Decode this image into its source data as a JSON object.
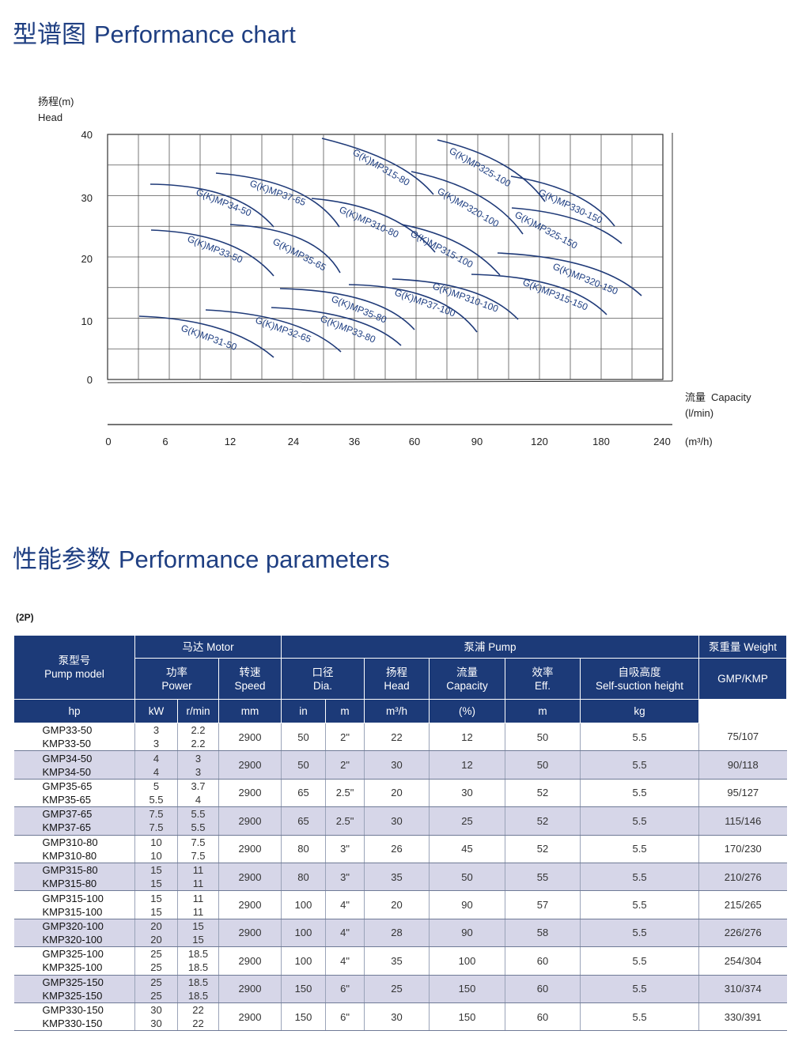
{
  "titles": {
    "chart_cn": "型谱图",
    "chart_en": "Performance chart",
    "params_cn": "性能参数",
    "params_en": "Performance parameters",
    "pole": "(2P)"
  },
  "chart_data": {
    "type": "line",
    "ylabel_cn": "扬程(m)",
    "ylabel_en": "Head",
    "xlabel_cn": "流量",
    "xlabel_en": "Capacity",
    "xunit_lmin": "(l/min)",
    "xunit_m3h": "(m³/h)",
    "ylim": [
      0,
      40
    ],
    "y_ticks": [
      "0",
      "10",
      "20",
      "30",
      "40"
    ],
    "x_ticks": [
      "0",
      "6",
      "12",
      "24",
      "36",
      "60",
      "90",
      "120",
      "180",
      "240"
    ],
    "series": [
      {
        "name": "G(K)MP31-50"
      },
      {
        "name": "G(K)MP32-65"
      },
      {
        "name": "G(K)MP33-50"
      },
      {
        "name": "G(K)MP33-80"
      },
      {
        "name": "G(K)MP34-50"
      },
      {
        "name": "G(K)MP35-65"
      },
      {
        "name": "G(K)MP35-80"
      },
      {
        "name": "G(K)MP37-65"
      },
      {
        "name": "G(K)MP37-100"
      },
      {
        "name": "G(K)MP310-80"
      },
      {
        "name": "G(K)MP310-100"
      },
      {
        "name": "G(K)MP315-80"
      },
      {
        "name": "G(K)MP315-100"
      },
      {
        "name": "G(K)MP315-150"
      },
      {
        "name": "G(K)MP320-100"
      },
      {
        "name": "G(K)MP320-150"
      },
      {
        "name": "G(K)MP325-100"
      },
      {
        "name": "G(K)MP325-150"
      },
      {
        "name": "G(K)MP330-150"
      }
    ]
  },
  "table": {
    "group_motor": "马达 Motor",
    "group_pump": "泵浦 Pump",
    "group_weight": "泵重量 Weight",
    "col_model_cn": "泵型号",
    "col_model_en": "Pump model",
    "col_power_cn": "功率",
    "col_power_en": "Power",
    "col_speed_cn": "转速",
    "col_speed_en": "Speed",
    "col_dia_cn": "口径",
    "col_dia_en": "Dia.",
    "col_head_cn": "扬程",
    "col_head_en": "Head",
    "col_cap_cn": "流量",
    "col_cap_en": "Capacity",
    "col_eff_cn": "效率",
    "col_eff_en": "Eff.",
    "col_suction_cn": "自吸高度",
    "col_suction_en": "Self-suction height",
    "col_weight_sub": "GMP/KMP",
    "unit_hp": "hp",
    "unit_kw": "kW",
    "unit_speed": "r/min",
    "unit_mm": "mm",
    "unit_in": "in",
    "unit_head": "m",
    "unit_cap": "m³/h",
    "unit_eff": "(%)",
    "unit_suction": "m",
    "unit_weight": "kg",
    "rows": [
      {
        "gmp": "GMP33-50",
        "kmp": "KMP33-50",
        "hp1": "3",
        "hp2": "3",
        "kw1": "2.2",
        "kw2": "2.2",
        "speed": "2900",
        "mm": "50",
        "in": "2\"",
        "head": "22",
        "cap": "12",
        "eff": "50",
        "suction": "5.5",
        "weight": "75/107"
      },
      {
        "gmp": "GMP34-50",
        "kmp": "KMP34-50",
        "hp1": "4",
        "hp2": "4",
        "kw1": "3",
        "kw2": "3",
        "speed": "2900",
        "mm": "50",
        "in": "2\"",
        "head": "30",
        "cap": "12",
        "eff": "50",
        "suction": "5.5",
        "weight": "90/118"
      },
      {
        "gmp": "GMP35-65",
        "kmp": "KMP35-65",
        "hp1": "5",
        "hp2": "5.5",
        "kw1": "3.7",
        "kw2": "4",
        "speed": "2900",
        "mm": "65",
        "in": "2.5\"",
        "head": "20",
        "cap": "30",
        "eff": "52",
        "suction": "5.5",
        "weight": "95/127"
      },
      {
        "gmp": "GMP37-65",
        "kmp": "KMP37-65",
        "hp1": "7.5",
        "hp2": "7.5",
        "kw1": "5.5",
        "kw2": "5.5",
        "speed": "2900",
        "mm": "65",
        "in": "2.5\"",
        "head": "30",
        "cap": "25",
        "eff": "52",
        "suction": "5.5",
        "weight": "115/146"
      },
      {
        "gmp": "GMP310-80",
        "kmp": "KMP310-80",
        "hp1": "10",
        "hp2": "10",
        "kw1": "7.5",
        "kw2": "7.5",
        "speed": "2900",
        "mm": "80",
        "in": "3\"",
        "head": "26",
        "cap": "45",
        "eff": "52",
        "suction": "5.5",
        "weight": "170/230"
      },
      {
        "gmp": "GMP315-80",
        "kmp": "KMP315-80",
        "hp1": "15",
        "hp2": "15",
        "kw1": "11",
        "kw2": "11",
        "speed": "2900",
        "mm": "80",
        "in": "3\"",
        "head": "35",
        "cap": "50",
        "eff": "55",
        "suction": "5.5",
        "weight": "210/276"
      },
      {
        "gmp": "GMP315-100",
        "kmp": "KMP315-100",
        "hp1": "15",
        "hp2": "15",
        "kw1": "11",
        "kw2": "11",
        "speed": "2900",
        "mm": "100",
        "in": "4\"",
        "head": "20",
        "cap": "90",
        "eff": "57",
        "suction": "5.5",
        "weight": "215/265"
      },
      {
        "gmp": "GMP320-100",
        "kmp": "KMP320-100",
        "hp1": "20",
        "hp2": "20",
        "kw1": "15",
        "kw2": "15",
        "speed": "2900",
        "mm": "100",
        "in": "4\"",
        "head": "28",
        "cap": "90",
        "eff": "58",
        "suction": "5.5",
        "weight": "226/276"
      },
      {
        "gmp": "GMP325-100",
        "kmp": "KMP325-100",
        "hp1": "25",
        "hp2": "25",
        "kw1": "18.5",
        "kw2": "18.5",
        "speed": "2900",
        "mm": "100",
        "in": "4\"",
        "head": "35",
        "cap": "100",
        "eff": "60",
        "suction": "5.5",
        "weight": "254/304"
      },
      {
        "gmp": "GMP325-150",
        "kmp": "KMP325-150",
        "hp1": "25",
        "hp2": "25",
        "kw1": "18.5",
        "kw2": "18.5",
        "speed": "2900",
        "mm": "150",
        "in": "6\"",
        "head": "25",
        "cap": "150",
        "eff": "60",
        "suction": "5.5",
        "weight": "310/374"
      },
      {
        "gmp": "GMP330-150",
        "kmp": "KMP330-150",
        "hp1": "30",
        "hp2": "30",
        "kw1": "22",
        "kw2": "22",
        "speed": "2900",
        "mm": "150",
        "in": "6\"",
        "head": "30",
        "cap": "150",
        "eff": "60",
        "suction": "5.5",
        "weight": "330/391"
      }
    ]
  }
}
